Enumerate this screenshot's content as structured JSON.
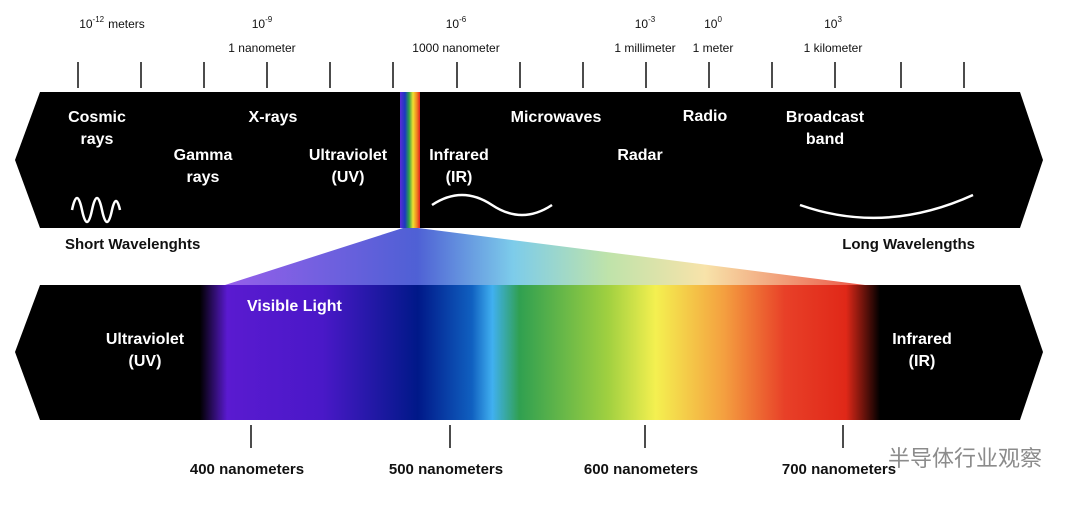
{
  "scale": [
    {
      "base": "10",
      "exponent": "-12",
      "unit": "meters"
    },
    {
      "base": "10",
      "exponent": "-9",
      "unit": "1 nanometer"
    },
    {
      "base": "10",
      "exponent": "-6",
      "unit": "1000 nanometer"
    },
    {
      "base": "10",
      "exponent": "-3",
      "unit": "1 millimeter"
    },
    {
      "base": "10",
      "exponent": "0",
      "unit": "1 meter"
    },
    {
      "base": "10",
      "exponent": "3",
      "unit": "1 kilometer"
    }
  ],
  "spectrum_labels": [
    {
      "lines": [
        "Cosmic",
        "rays"
      ]
    },
    {
      "lines": [
        "Gamma",
        "rays"
      ]
    },
    {
      "lines": [
        "X-rays"
      ]
    },
    {
      "lines": [
        "Ultraviolet",
        "(UV)"
      ]
    },
    {
      "lines": [
        "Infrared",
        "(IR)"
      ]
    },
    {
      "lines": [
        "Microwaves"
      ]
    },
    {
      "lines": [
        "Radar"
      ]
    },
    {
      "lines": [
        "Radio"
      ]
    },
    {
      "lines": [
        "Broadcast",
        "band"
      ]
    }
  ],
  "short_label": "Short Wavelenghts",
  "long_label": "Long Wavelengths",
  "visible": {
    "title": "Visible Light",
    "left": [
      "Ultraviolet",
      "(UV)"
    ],
    "right": [
      "Infrared",
      "(IR)"
    ],
    "ticks": [
      "400 nanometers",
      "500 nanometers",
      "600 nanometers",
      "700 nanometers"
    ]
  },
  "watermark": "半导体行业观察"
}
